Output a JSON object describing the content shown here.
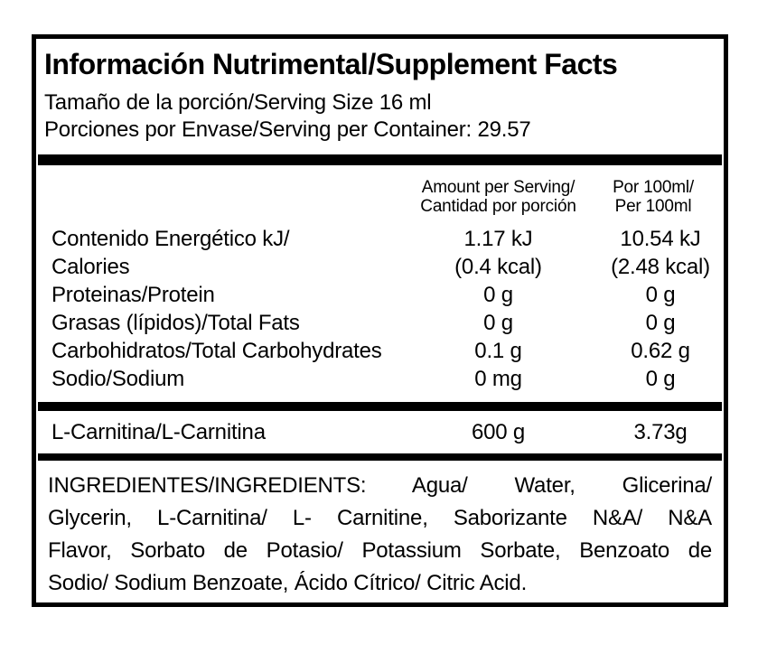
{
  "panel": {
    "title": "Información Nutrimental/Supplement Facts",
    "serving_size": "Tamaño de la porción/Serving Size 16 ml",
    "servings_per_container": "Porciones por Envase/Serving per Container: 29.57"
  },
  "table": {
    "columns": {
      "per_serving_line1": "Amount per Serving/",
      "per_serving_line2": "Cantidad por porción",
      "per_100ml_line1": "Por 100ml/",
      "per_100ml_line2": "Per 100ml"
    },
    "rows": [
      {
        "label": "Contenido Energético kJ/",
        "per_serving": "1.17 kJ",
        "per_100ml": "10.54 kJ"
      },
      {
        "label": "Calories",
        "per_serving": "(0.4 kcal)",
        "per_100ml": "(2.48 kcal)"
      },
      {
        "label": "Proteinas/Protein",
        "per_serving": "0 g",
        "per_100ml": "0 g"
      },
      {
        "label": "Grasas (lípidos)/Total Fats",
        "per_serving": "0 g",
        "per_100ml": "0 g"
      },
      {
        "label": "Carbohidratos/Total Carbohydrates",
        "per_serving": "0.1 g",
        "per_100ml": "0.62 g"
      },
      {
        "label": "Sodio/Sodium",
        "per_serving": "0 mg",
        "per_100ml": "0 g"
      }
    ],
    "supplement_row": {
      "label": "L-Carnitina/L-Carnitina",
      "per_serving": "600 g",
      "per_100ml": "3.73g"
    }
  },
  "ingredients": {
    "lines": [
      "INGREDIENTES/INGREDIENTS: Agua/ Water, Glicerina/",
      "Glycerin, L-Carnitina/ L- Carnitine, Saborizante N&A/ N&A",
      "Flavor, Sorbato de Potasio/ Potassium Sorbate, Benzoato de",
      "Sodio/ Sodium Benzoate, Ácido Cítrico/ Citric Acid."
    ]
  },
  "colors": {
    "ink": "#000000",
    "panel_background": "#ffffff",
    "border": "#000000"
  }
}
